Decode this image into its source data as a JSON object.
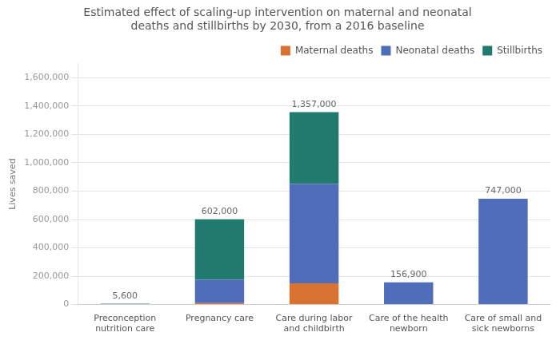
{
  "chart_data": {
    "type": "bar",
    "title": "Estimated effect of scaling-up intervention on maternal and neonatal\ndeaths and stillbirths by 2030, from a 2016 baseline",
    "ylabel": "Lives saved",
    "categories": [
      "Preconception\nnutrition care",
      "Pregnancy care",
      "Care during labor\nand childbirth",
      "Care of the health\nnewborn",
      "Care of small and\nsick newborns"
    ],
    "series": [
      {
        "name": "Maternal deaths",
        "color": "#d97230",
        "values": [
          0,
          10000,
          150000,
          0,
          0
        ]
      },
      {
        "name": "Neonatal deaths",
        "color": "#4f6db8",
        "values": [
          5600,
          165000,
          700000,
          156900,
          747000
        ]
      },
      {
        "name": "Stillbirths",
        "color": "#217a6e",
        "values": [
          0,
          427000,
          507000,
          0,
          0
        ]
      }
    ],
    "totals": [
      5600,
      602000,
      1357000,
      156900,
      747000
    ],
    "total_labels": [
      "5,600",
      "602,000",
      "1,357,000",
      "156,900",
      "747,000"
    ],
    "stacked": true,
    "ylim": [
      0,
      1700000
    ],
    "yticks": [
      0,
      {
        "value": 200000,
        "label": "200,000"
      },
      {
        "value": 400000,
        "label": "400,000"
      },
      {
        "value": 600000,
        "label": "600,000"
      },
      {
        "value": 800000,
        "label": "800,000"
      },
      {
        "value": 1000000,
        "label": "1,000,000"
      },
      {
        "value": 1200000,
        "label": "1,200,000"
      },
      {
        "value": 1400000,
        "label": "1,400,000"
      },
      {
        "value": 1600000,
        "label": "1,600,000"
      }
    ],
    "grid": true,
    "legend": "upper right"
  }
}
